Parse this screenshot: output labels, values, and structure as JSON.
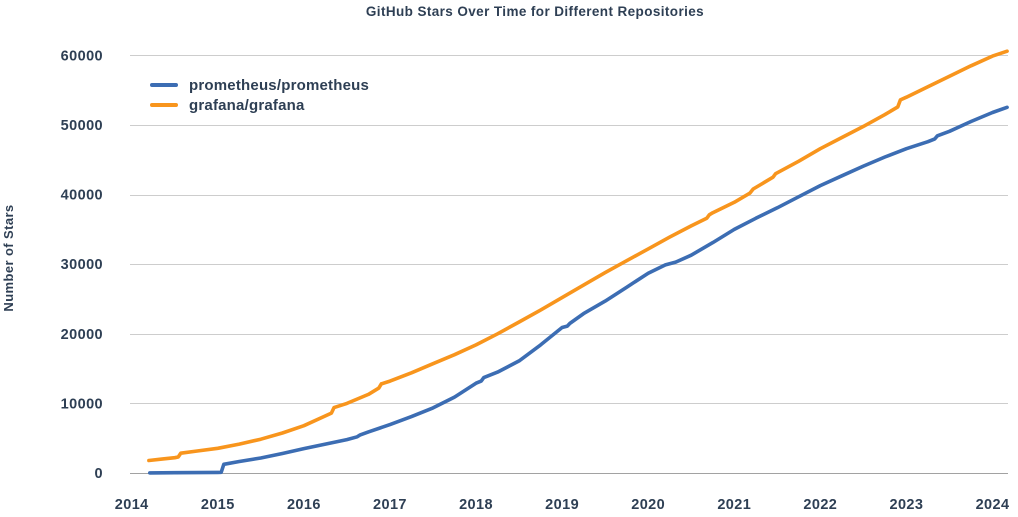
{
  "styles": {
    "background": "#ffffff",
    "text_color": "#2e3f54",
    "grid_color": "#cdcdcd",
    "axis_color": "#a2a2a2"
  },
  "chart_data": {
    "type": "line",
    "title": "GitHub Stars Over Time for Different Repositories",
    "ylabel": "Number of Stars",
    "xlabel": "",
    "grid": true,
    "legend_position": "upper-left-inside",
    "xlim": [
      2013.98,
      2024.18
    ],
    "ylim": [
      0,
      62500
    ],
    "x_tick_labels": [
      "2014",
      "2015",
      "2016",
      "2017",
      "2018",
      "2019",
      "2020",
      "2021",
      "2022",
      "2023",
      "2024"
    ],
    "x_tick_values": [
      2014,
      2015,
      2016,
      2017,
      2018,
      2019,
      2020,
      2021,
      2022,
      2023,
      2024
    ],
    "y_tick_labels": [
      "0",
      "10000",
      "20000",
      "30000",
      "40000",
      "50000",
      "60000"
    ],
    "y_tick_values": [
      0,
      10000,
      20000,
      30000,
      40000,
      50000,
      60000
    ],
    "series": [
      {
        "name": "prometheus/prometheus",
        "color": "#3c6db3",
        "points": [
          [
            2014.21,
            20
          ],
          [
            2014.5,
            40
          ],
          [
            2014.75,
            60
          ],
          [
            2015.0,
            80
          ],
          [
            2015.04,
            100
          ],
          [
            2015.07,
            1250
          ],
          [
            2015.25,
            1650
          ],
          [
            2015.5,
            2150
          ],
          [
            2015.75,
            2800
          ],
          [
            2016.0,
            3500
          ],
          [
            2016.25,
            4150
          ],
          [
            2016.5,
            4800
          ],
          [
            2016.62,
            5200
          ],
          [
            2016.65,
            5450
          ],
          [
            2016.75,
            5900
          ],
          [
            2017.0,
            6950
          ],
          [
            2017.25,
            8100
          ],
          [
            2017.5,
            9350
          ],
          [
            2017.75,
            10900
          ],
          [
            2018.0,
            12900
          ],
          [
            2018.06,
            13200
          ],
          [
            2018.09,
            13700
          ],
          [
            2018.25,
            14500
          ],
          [
            2018.5,
            16100
          ],
          [
            2018.75,
            18400
          ],
          [
            2019.0,
            20900
          ],
          [
            2019.06,
            21100
          ],
          [
            2019.09,
            21500
          ],
          [
            2019.25,
            22900
          ],
          [
            2019.5,
            24700
          ],
          [
            2019.75,
            26700
          ],
          [
            2020.0,
            28700
          ],
          [
            2020.2,
            29900
          ],
          [
            2020.32,
            30300
          ],
          [
            2020.5,
            31300
          ],
          [
            2020.75,
            33100
          ],
          [
            2021.0,
            35000
          ],
          [
            2021.25,
            36600
          ],
          [
            2021.5,
            38100
          ],
          [
            2021.75,
            39700
          ],
          [
            2022.0,
            41300
          ],
          [
            2022.25,
            42700
          ],
          [
            2022.5,
            44100
          ],
          [
            2022.75,
            45400
          ],
          [
            2023.0,
            46600
          ],
          [
            2023.25,
            47600
          ],
          [
            2023.33,
            48000
          ],
          [
            2023.36,
            48450
          ],
          [
            2023.5,
            49100
          ],
          [
            2023.75,
            50500
          ],
          [
            2024.0,
            51800
          ],
          [
            2024.17,
            52550
          ]
        ]
      },
      {
        "name": "grafana/grafana",
        "color": "#f8951d",
        "points": [
          [
            2014.2,
            1800
          ],
          [
            2014.35,
            2000
          ],
          [
            2014.5,
            2200
          ],
          [
            2014.54,
            2300
          ],
          [
            2014.57,
            2850
          ],
          [
            2014.75,
            3150
          ],
          [
            2015.0,
            3550
          ],
          [
            2015.25,
            4150
          ],
          [
            2015.5,
            4850
          ],
          [
            2015.75,
            5750
          ],
          [
            2016.0,
            6800
          ],
          [
            2016.25,
            8200
          ],
          [
            2016.32,
            8600
          ],
          [
            2016.35,
            9400
          ],
          [
            2016.5,
            10000
          ],
          [
            2016.75,
            11300
          ],
          [
            2016.87,
            12200
          ],
          [
            2016.9,
            12800
          ],
          [
            2017.0,
            13200
          ],
          [
            2017.25,
            14400
          ],
          [
            2017.5,
            15700
          ],
          [
            2017.75,
            17000
          ],
          [
            2018.0,
            18400
          ],
          [
            2018.25,
            20000
          ],
          [
            2018.5,
            21700
          ],
          [
            2018.75,
            23400
          ],
          [
            2019.0,
            25200
          ],
          [
            2019.25,
            27000
          ],
          [
            2019.5,
            28800
          ],
          [
            2019.75,
            30500
          ],
          [
            2020.0,
            32200
          ],
          [
            2020.25,
            33900
          ],
          [
            2020.5,
            35500
          ],
          [
            2020.68,
            36600
          ],
          [
            2020.71,
            37100
          ],
          [
            2020.75,
            37400
          ],
          [
            2021.0,
            38900
          ],
          [
            2021.18,
            40200
          ],
          [
            2021.22,
            40800
          ],
          [
            2021.45,
            42500
          ],
          [
            2021.48,
            43000
          ],
          [
            2021.75,
            44800
          ],
          [
            2022.0,
            46600
          ],
          [
            2022.25,
            48200
          ],
          [
            2022.5,
            49800
          ],
          [
            2022.75,
            51500
          ],
          [
            2022.9,
            52600
          ],
          [
            2022.93,
            53600
          ],
          [
            2023.0,
            54000
          ],
          [
            2023.25,
            55500
          ],
          [
            2023.5,
            57000
          ],
          [
            2023.75,
            58500
          ],
          [
            2024.0,
            59900
          ],
          [
            2024.17,
            60600
          ]
        ]
      }
    ]
  }
}
